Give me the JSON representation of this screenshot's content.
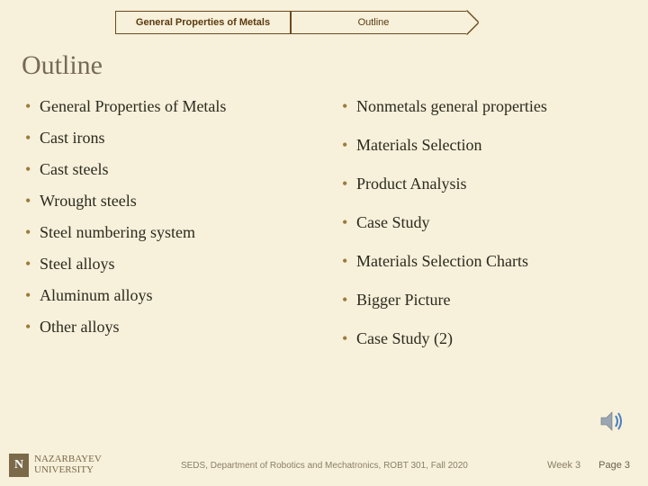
{
  "colors": {
    "background": "#f7f0da",
    "crumb_border": "#6b4a1f",
    "crumb_text": "#5b3a10",
    "title": "#766a57",
    "bullet": "#9a7b3b",
    "body_text": "#2a2a1f",
    "footer_text": "#8a8068",
    "logo": "#7a6a4a",
    "page_num": "#6e624b"
  },
  "breadcrumb": {
    "first": "General Properties of Metals",
    "second": "Outline"
  },
  "title": "Outline",
  "left_items": [
    "General Properties of Metals",
    "Cast irons",
    "Cast steels",
    "Wrought steels",
    "Steel numbering system",
    "Steel alloys",
    "Aluminum alloys",
    "Other alloys"
  ],
  "right_items": [
    "Nonmetals general properties",
    "Materials Selection",
    "Product Analysis",
    "Case Study",
    "Materials Selection Charts",
    "Bigger Picture",
    "Case Study (2)"
  ],
  "footer": {
    "uni_line1": "NAZARBAYEV",
    "uni_line2": "UNIVERSITY",
    "dept": "SEDS, Department of Robotics and Mechatronics, ROBT 301, Fall 2020",
    "week": "Week 3",
    "page": "Page 3"
  }
}
